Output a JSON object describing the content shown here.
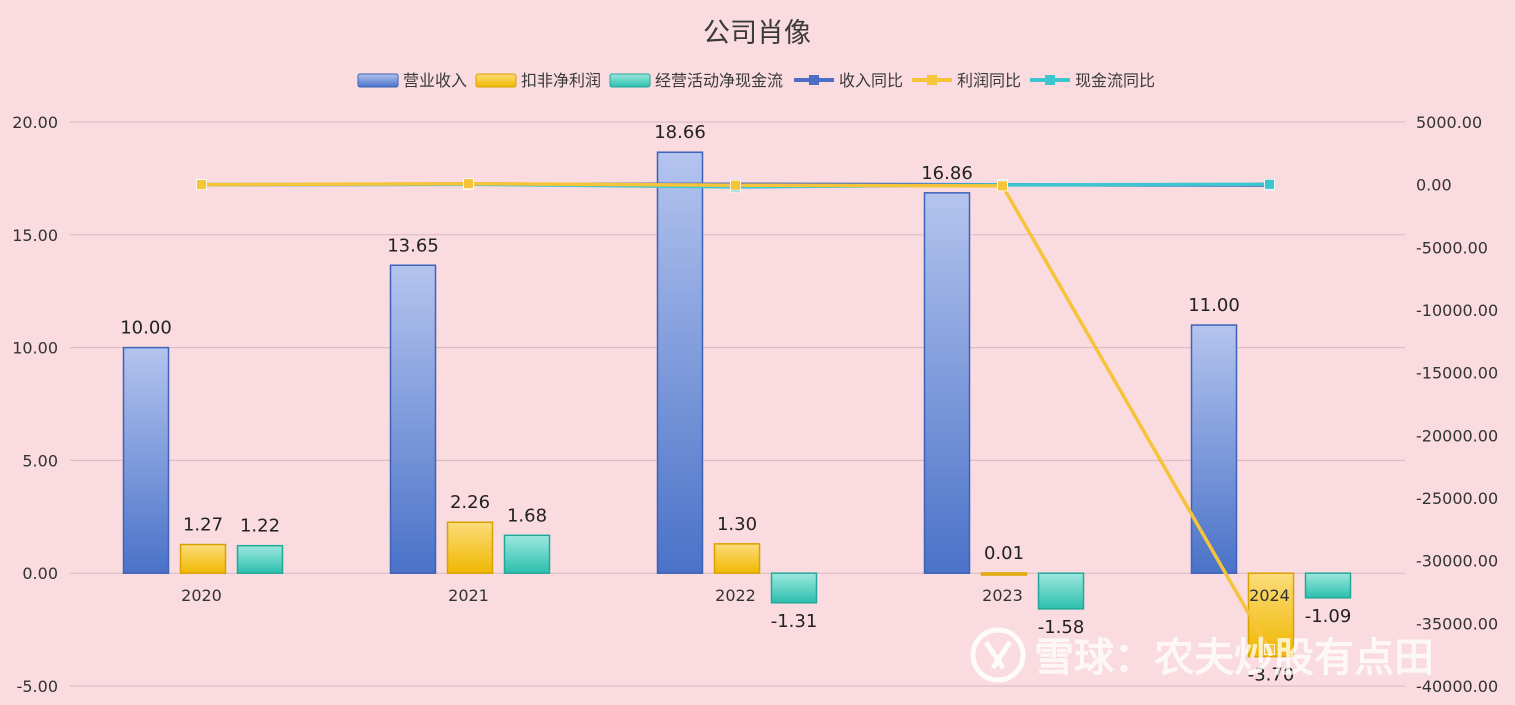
{
  "chart_data": {
    "type": "bar",
    "title": "公司肖像",
    "categories": [
      "2020",
      "2021",
      "2022",
      "2023",
      "2024"
    ],
    "series": [
      {
        "name": "营业收入",
        "kind": "bar",
        "axis": "left",
        "color": "#4a72c8",
        "values": [
          10.0,
          13.65,
          18.66,
          16.86,
          11.0
        ]
      },
      {
        "name": "扣非净利润",
        "kind": "bar",
        "axis": "left",
        "color": "#f2c010",
        "values": [
          1.27,
          2.26,
          1.3,
          0.01,
          -3.7
        ]
      },
      {
        "name": "经营活动净现金流",
        "kind": "bar",
        "axis": "left",
        "color": "#2fbfae",
        "values": [
          1.22,
          1.68,
          -1.31,
          -1.58,
          -1.09
        ]
      },
      {
        "name": "收入同比",
        "kind": "line",
        "axis": "right",
        "color": "#4a6fc4",
        "values": [
          0,
          36.5,
          36.7,
          -9.6,
          -34.8
        ]
      },
      {
        "name": "利润同比",
        "kind": "line",
        "axis": "right",
        "color": "#f5c43a",
        "values": [
          0,
          78,
          -42,
          -99.2,
          -37100
        ]
      },
      {
        "name": "现金流同比",
        "kind": "line",
        "axis": "right",
        "color": "#3ec6d0",
        "values": [
          0,
          37.7,
          -178,
          -20.6,
          31
        ]
      }
    ],
    "y_left": {
      "min": -5,
      "max": 20,
      "ticks": [
        "20.00",
        "15.00",
        "10.00",
        "5.00",
        "0.00",
        "-5.00"
      ],
      "tick_values": [
        20,
        15,
        10,
        5,
        0,
        -5
      ]
    },
    "y_right": {
      "min": -40000,
      "max": 5000,
      "ticks": [
        "5000.00",
        "0.00",
        "-5000.00",
        "-10000.00",
        "-15000.00",
        "-20000.00",
        "-25000.00",
        "-30000.00",
        "-35000.00",
        "-40000.00"
      ],
      "tick_values": [
        5000,
        0,
        -5000,
        -10000,
        -15000,
        -20000,
        -25000,
        -30000,
        -35000,
        -40000
      ]
    },
    "bar_labels": [
      [
        "10.00",
        "13.65",
        "18.66",
        "16.86",
        "11.00"
      ],
      [
        "1.27",
        "2.26",
        "1.30",
        "0.01",
        "-3.70"
      ],
      [
        "1.22",
        "1.68",
        "-1.31",
        "-1.58",
        "-1.09"
      ]
    ],
    "grid": true,
    "legend_position": "top-center"
  },
  "watermark": {
    "text": "雪球：农夫炒股有点田",
    "icon": "xueqiu-logo-icon"
  },
  "colors": {
    "background": "#f9dbe0",
    "grid": "#d9b9c0"
  }
}
